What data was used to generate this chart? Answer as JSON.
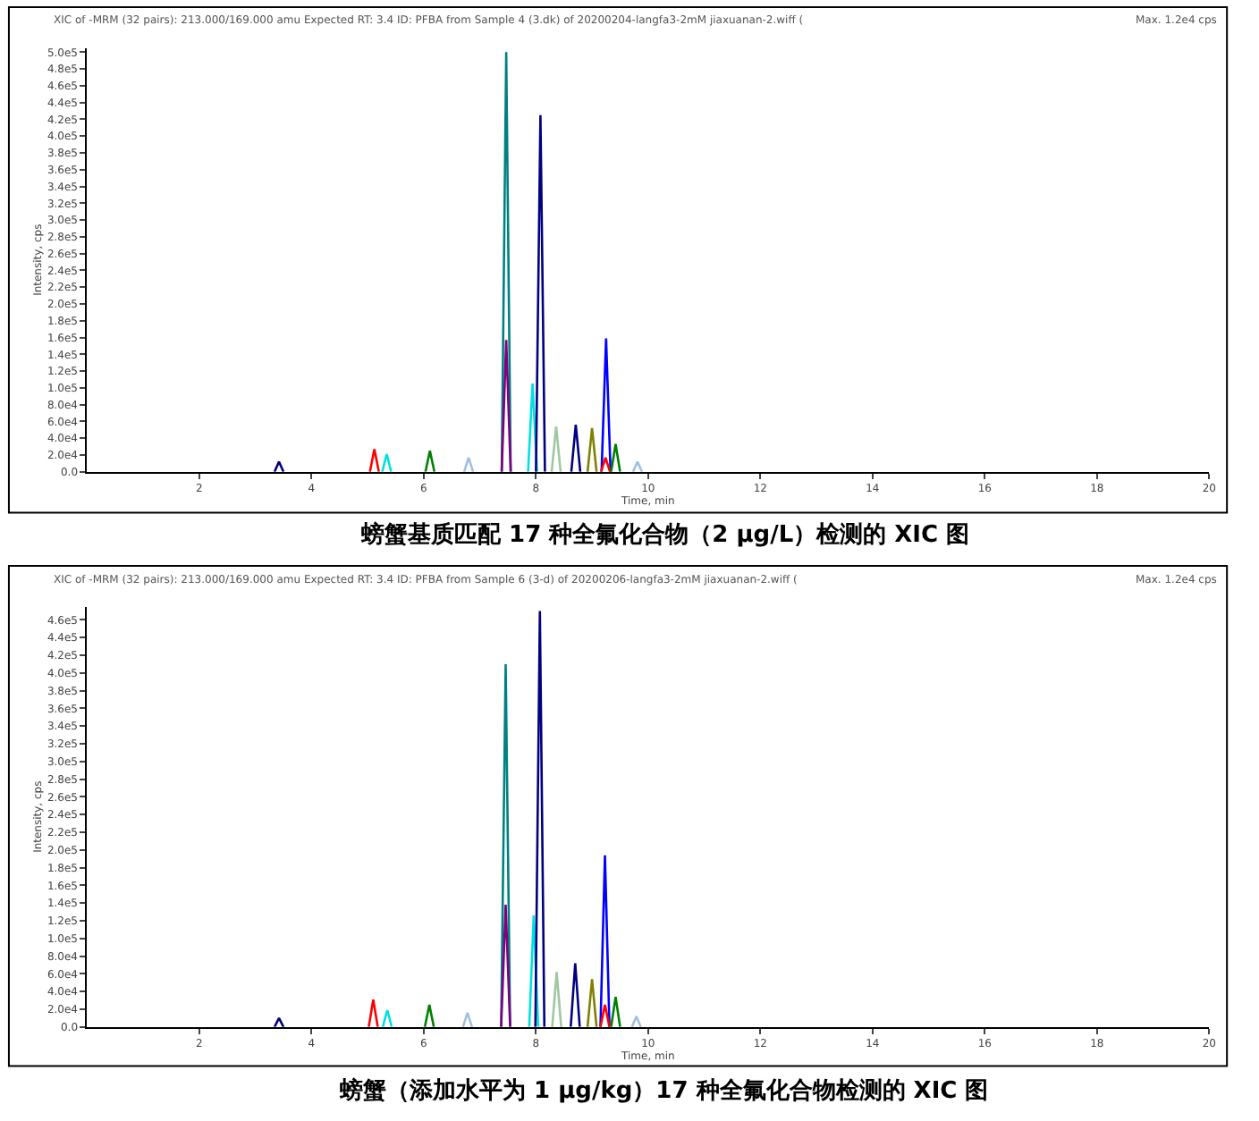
{
  "chart_data": [
    {
      "type": "line",
      "title": "螃蟹基质匹配 17 种全氟化合物（2 μg/L）检测的 XIC 图",
      "xlabel": "Time, min",
      "ylabel": "Intensity, cps",
      "annotations": [
        "XIC of -MRM (32 pairs): 213.000/169.000 amu Expected RT: 3.4 ID: PFBA from Sample 4 (3.dk) of 20200204-langfa3-2mM jiaxuanan-2.wiff (",
        "Max. 1.2e4 cps"
      ],
      "xlim": [
        0,
        20
      ],
      "xticks": [
        2,
        4,
        6,
        8,
        10,
        12,
        14,
        16,
        18,
        20
      ],
      "ylim": [
        0,
        505000
      ],
      "yticks": [
        {
          "value": 0,
          "label": "0.0"
        },
        {
          "value": 20000,
          "label": "2.0e4"
        },
        {
          "value": 40000,
          "label": "4.0e4"
        },
        {
          "value": 60000,
          "label": "6.0e4"
        },
        {
          "value": 80000,
          "label": "8.0e4"
        },
        {
          "value": 100000,
          "label": "1.0e5"
        },
        {
          "value": 120000,
          "label": "1.2e5"
        },
        {
          "value": 140000,
          "label": "1.4e5"
        },
        {
          "value": 160000,
          "label": "1.6e5"
        },
        {
          "value": 180000,
          "label": "1.8e5"
        },
        {
          "value": 200000,
          "label": "2.0e5"
        },
        {
          "value": 220000,
          "label": "2.2e5"
        },
        {
          "value": 240000,
          "label": "2.4e5"
        },
        {
          "value": 260000,
          "label": "2.6e5"
        },
        {
          "value": 280000,
          "label": "2.8e5"
        },
        {
          "value": 300000,
          "label": "3.0e5"
        },
        {
          "value": 320000,
          "label": "3.2e5"
        },
        {
          "value": 340000,
          "label": "3.4e5"
        },
        {
          "value": 360000,
          "label": "3.6e5"
        },
        {
          "value": 380000,
          "label": "3.8e5"
        },
        {
          "value": 400000,
          "label": "4.0e5"
        },
        {
          "value": 420000,
          "label": "4.2e5"
        },
        {
          "value": 440000,
          "label": "4.4e5"
        },
        {
          "value": 460000,
          "label": "4.6e5"
        },
        {
          "value": 480000,
          "label": "4.8e5"
        },
        {
          "value": 500000,
          "label": "5.0e5"
        }
      ],
      "series": [
        {
          "color": "#000080",
          "x": [
            3.34,
            3.42,
            3.5
          ],
          "values": [
            0,
            12000,
            0
          ]
        },
        {
          "color": "#ff0000",
          "x": [
            5.04,
            5.12,
            5.2
          ],
          "values": [
            0,
            27000,
            0
          ]
        },
        {
          "color": "#00e0e0",
          "x": [
            5.26,
            5.34,
            5.42
          ],
          "values": [
            0,
            21000,
            0
          ]
        },
        {
          "color": "#008000",
          "x": [
            6.03,
            6.11,
            6.19
          ],
          "values": [
            0,
            25000,
            0
          ]
        },
        {
          "color": "#a0c0e0",
          "x": [
            6.72,
            6.8,
            6.88
          ],
          "values": [
            0,
            17000,
            0
          ]
        },
        {
          "color": "#008080",
          "x": [
            7.39,
            7.47,
            7.55
          ],
          "values": [
            0,
            500000,
            0
          ]
        },
        {
          "color": "#800080",
          "x": [
            7.39,
            7.47,
            7.55
          ],
          "values": [
            0,
            157000,
            0
          ]
        },
        {
          "color": "#00e0e0",
          "x": [
            7.86,
            7.94,
            8.02
          ],
          "values": [
            0,
            105000,
            0
          ]
        },
        {
          "color": "#000080",
          "x": [
            8.0,
            8.08,
            8.16
          ],
          "values": [
            0,
            425000,
            0
          ]
        },
        {
          "color": "#a0c8a0",
          "x": [
            8.28,
            8.36,
            8.44
          ],
          "values": [
            0,
            54000,
            0
          ]
        },
        {
          "color": "#000080",
          "x": [
            8.63,
            8.71,
            8.79
          ],
          "values": [
            0,
            56000,
            0
          ]
        },
        {
          "color": "#808000",
          "x": [
            8.92,
            9.0,
            9.08
          ],
          "values": [
            0,
            52000,
            0
          ]
        },
        {
          "color": "#0000ff",
          "x": [
            9.17,
            9.25,
            9.33
          ],
          "values": [
            0,
            159000,
            0
          ]
        },
        {
          "color": "#ff0000",
          "x": [
            9.16,
            9.24,
            9.32
          ],
          "values": [
            0,
            17000,
            0
          ]
        },
        {
          "color": "#008000",
          "x": [
            9.34,
            9.42,
            9.5
          ],
          "values": [
            0,
            33000,
            0
          ]
        },
        {
          "color": "#a0c0e0",
          "x": [
            9.73,
            9.81,
            9.89
          ],
          "values": [
            0,
            12000,
            0
          ]
        }
      ]
    },
    {
      "type": "line",
      "title": "螃蟹（添加水平为 1 μg/kg）17 种全氟化合物检测的 XIC 图",
      "xlabel": "Time, min",
      "ylabel": "Intensity, cps",
      "annotations": [
        "XIC of -MRM (32 pairs): 213.000/169.000 amu Expected RT: 3.4 ID: PFBA from Sample 6 (3-d) of 20200206-langfa3-2mM jiaxuanan-2.wiff (",
        "Max. 1.2e4 cps"
      ],
      "xlim": [
        0,
        20
      ],
      "xticks": [
        2,
        4,
        6,
        8,
        10,
        12,
        14,
        16,
        18,
        20
      ],
      "ylim": [
        0,
        475000
      ],
      "yticks": [
        {
          "value": 0,
          "label": "0.0"
        },
        {
          "value": 20000,
          "label": "2.0e4"
        },
        {
          "value": 40000,
          "label": "4.0e4"
        },
        {
          "value": 60000,
          "label": "6.0e4"
        },
        {
          "value": 80000,
          "label": "8.0e4"
        },
        {
          "value": 100000,
          "label": "1.0e5"
        },
        {
          "value": 120000,
          "label": "1.2e5"
        },
        {
          "value": 140000,
          "label": "1.4e5"
        },
        {
          "value": 160000,
          "label": "1.6e5"
        },
        {
          "value": 180000,
          "label": "1.8e5"
        },
        {
          "value": 200000,
          "label": "2.0e5"
        },
        {
          "value": 220000,
          "label": "2.2e5"
        },
        {
          "value": 240000,
          "label": "2.4e5"
        },
        {
          "value": 260000,
          "label": "2.6e5"
        },
        {
          "value": 280000,
          "label": "2.8e5"
        },
        {
          "value": 300000,
          "label": "3.0e5"
        },
        {
          "value": 320000,
          "label": "3.2e5"
        },
        {
          "value": 340000,
          "label": "3.4e5"
        },
        {
          "value": 360000,
          "label": "3.6e5"
        },
        {
          "value": 380000,
          "label": "3.8e5"
        },
        {
          "value": 400000,
          "label": "4.0e5"
        },
        {
          "value": 420000,
          "label": "4.2e5"
        },
        {
          "value": 440000,
          "label": "4.4e5"
        },
        {
          "value": 460000,
          "label": "4.6e5"
        }
      ],
      "series": [
        {
          "color": "#000080",
          "x": [
            3.34,
            3.42,
            3.5
          ],
          "values": [
            0,
            10000,
            0
          ]
        },
        {
          "color": "#ff0000",
          "x": [
            5.02,
            5.1,
            5.18
          ],
          "values": [
            0,
            31000,
            0
          ]
        },
        {
          "color": "#00e0e0",
          "x": [
            5.27,
            5.35,
            5.43
          ],
          "values": [
            0,
            19000,
            0
          ]
        },
        {
          "color": "#008000",
          "x": [
            6.02,
            6.1,
            6.18
          ],
          "values": [
            0,
            25000,
            0
          ]
        },
        {
          "color": "#a0c0e0",
          "x": [
            6.7,
            6.78,
            6.86
          ],
          "values": [
            0,
            16000,
            0
          ]
        },
        {
          "color": "#008080",
          "x": [
            7.38,
            7.46,
            7.54
          ],
          "values": [
            0,
            410000,
            0
          ]
        },
        {
          "color": "#800080",
          "x": [
            7.38,
            7.46,
            7.54
          ],
          "values": [
            0,
            138000,
            0
          ]
        },
        {
          "color": "#00e0e0",
          "x": [
            7.88,
            7.96,
            8.04
          ],
          "values": [
            0,
            126000,
            0
          ]
        },
        {
          "color": "#000080",
          "x": [
            7.99,
            8.07,
            8.15
          ],
          "values": [
            0,
            470000,
            0
          ]
        },
        {
          "color": "#a0c8a0",
          "x": [
            8.29,
            8.37,
            8.45
          ],
          "values": [
            0,
            62000,
            0
          ]
        },
        {
          "color": "#000080",
          "x": [
            8.62,
            8.7,
            8.78
          ],
          "values": [
            0,
            72000,
            0
          ]
        },
        {
          "color": "#808000",
          "x": [
            8.92,
            9.0,
            9.08
          ],
          "values": [
            0,
            54000,
            0
          ]
        },
        {
          "color": "#0000ff",
          "x": [
            9.15,
            9.23,
            9.31
          ],
          "values": [
            0,
            194000,
            0
          ]
        },
        {
          "color": "#ff0000",
          "x": [
            9.15,
            9.23,
            9.31
          ],
          "values": [
            0,
            25000,
            0
          ]
        },
        {
          "color": "#008000",
          "x": [
            9.34,
            9.42,
            9.5
          ],
          "values": [
            0,
            34000,
            0
          ]
        },
        {
          "color": "#a0c0e0",
          "x": [
            9.71,
            9.79,
            9.87
          ],
          "values": [
            0,
            12000,
            0
          ]
        }
      ]
    }
  ]
}
